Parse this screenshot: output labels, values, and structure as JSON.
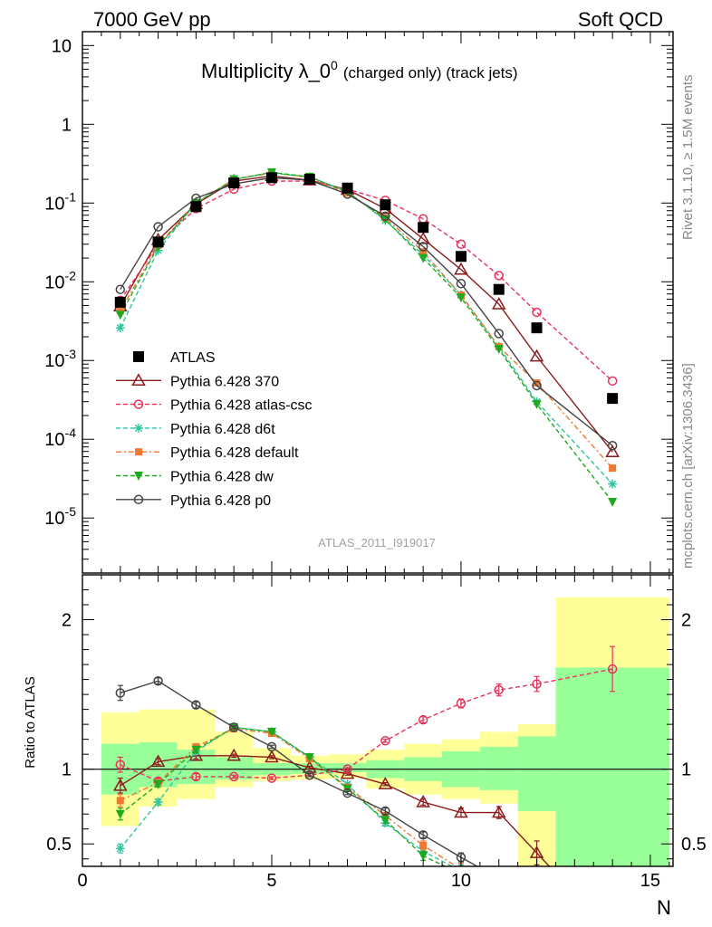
{
  "header": {
    "left": "7000 GeV pp",
    "right": "Soft QCD"
  },
  "title": {
    "main": "Multiplicity λ_0",
    "superscript": "0",
    "suffix": "(charged only) (track jets)"
  },
  "side_text": {
    "rivet": "Rivet 3.1.10, ≥ 1.5M events",
    "mcplots": "mcplots.cern.ch [arXiv:1306.3436]"
  },
  "watermark": "ATLAS_2011_I919017",
  "ratio_ylabel": "Ratio to ATLAS",
  "xlabel": "N",
  "colors": {
    "atlas": "#000000",
    "p370": "#8b1a1a",
    "atlascsc": "#e6335a",
    "d6t": "#2ec4a0",
    "default": "#f07830",
    "dw": "#1eaa1e",
    "p0": "#444444",
    "band_inner": "#99ff99",
    "band_outer": "#ffff99"
  },
  "chart_data": [
    {
      "type": "scatter",
      "panel": "main",
      "yscale": "log",
      "ylim": [
        2e-06,
        15
      ],
      "xlim": [
        0,
        15.6
      ],
      "y_ticks": [
        "10^-5",
        "10^-4",
        "10^-3",
        "10^-2",
        "10^-1",
        "1",
        "10"
      ],
      "x": [
        1,
        2,
        3,
        4,
        5,
        6,
        7,
        8,
        9,
        10,
        11,
        12,
        14
      ],
      "series": [
        {
          "name": "ATLAS",
          "style": "atlas",
          "values": [
            0.0055,
            0.032,
            0.09,
            0.18,
            0.21,
            0.2,
            0.155,
            0.095,
            0.049,
            0.021,
            0.008,
            0.0026,
            0.00033
          ]
        },
        {
          "name": "Pythia 6.428 370",
          "style": "p370",
          "values": [
            0.0049,
            0.034,
            0.097,
            0.19,
            0.221,
            0.195,
            0.148,
            0.085,
            0.035,
            0.0143,
            0.0052,
            0.00113,
            6.9e-05
          ]
        },
        {
          "name": "Pythia 6.428 atlas-csc",
          "style": "atlascsc",
          "values": [
            0.0058,
            0.03,
            0.085,
            0.15,
            0.19,
            0.19,
            0.15,
            0.108,
            0.063,
            0.03,
            0.012,
            0.0041,
            0.00055
          ]
        },
        {
          "name": "Pythia 6.428 d6t",
          "style": "d6t",
          "values": [
            0.0026,
            0.025,
            0.1,
            0.2,
            0.24,
            0.215,
            0.14,
            0.06,
            0.022,
            0.0068,
            0.0015,
            0.0003,
            2.7e-05
          ]
        },
        {
          "name": "Pythia 6.428 default",
          "style": "default",
          "values": [
            0.0043,
            0.029,
            0.1,
            0.2,
            0.245,
            0.21,
            0.135,
            0.065,
            0.024,
            0.0068,
            0.0015,
            0.00052,
            4.3e-05
          ]
        },
        {
          "name": "Pythia 6.428 dw",
          "style": "dw",
          "values": [
            0.0038,
            0.028,
            0.1,
            0.2,
            0.245,
            0.215,
            0.138,
            0.062,
            0.02,
            0.0063,
            0.0014,
            0.00028,
            1.6e-05
          ]
        },
        {
          "name": "Pythia 6.428 p0",
          "style": "p0",
          "values": [
            0.008,
            0.05,
            0.115,
            0.175,
            0.21,
            0.195,
            0.13,
            0.068,
            0.028,
            0.0095,
            0.0022,
            0.00048,
            8.3e-05
          ]
        }
      ],
      "legend": [
        {
          "label": "ATLAS",
          "style": "atlas"
        },
        {
          "label": "Pythia 6.428 370",
          "style": "p370"
        },
        {
          "label": "Pythia 6.428 atlas-csc",
          "style": "atlascsc"
        },
        {
          "label": "Pythia 6.428 d6t",
          "style": "d6t"
        },
        {
          "label": "Pythia 6.428 default",
          "style": "default"
        },
        {
          "label": "Pythia 6.428 dw",
          "style": "dw"
        },
        {
          "label": "Pythia 6.428 p0",
          "style": "p0"
        }
      ]
    },
    {
      "type": "line",
      "panel": "ratio",
      "ylim": [
        0.35,
        2.3
      ],
      "xlim": [
        0,
        15.6
      ],
      "y_ticks": [
        0.5,
        1,
        2
      ],
      "x_ticks": [
        0,
        5,
        10,
        15
      ],
      "x": [
        1,
        2,
        3,
        4,
        5,
        6,
        7,
        8,
        9,
        10,
        11,
        12,
        14
      ],
      "bands": [
        {
          "lo": 0.5,
          "hi": 1.5,
          "outer": [
            0.62,
            1.38
          ],
          "inner": [
            0.83,
            1.17
          ]
        },
        {
          "lo": 1.5,
          "hi": 2.5,
          "outer": [
            0.75,
            1.4
          ],
          "inner": [
            0.88,
            1.18
          ]
        },
        {
          "lo": 2.5,
          "hi": 3.5,
          "outer": [
            0.8,
            1.4
          ],
          "inner": [
            0.9,
            1.13
          ]
        },
        {
          "lo": 3.5,
          "hi": 4.5,
          "outer": [
            0.88,
            1.25
          ],
          "inner": [
            0.93,
            1.08
          ]
        },
        {
          "lo": 4.5,
          "hi": 5.5,
          "outer": [
            0.92,
            1.14
          ],
          "inner": [
            0.96,
            1.04
          ]
        },
        {
          "lo": 5.5,
          "hi": 6.5,
          "outer": [
            0.93,
            1.09
          ],
          "inner": [
            0.97,
            1.04
          ]
        },
        {
          "lo": 6.5,
          "hi": 7.5,
          "outer": [
            0.94,
            1.1
          ],
          "inner": [
            0.98,
            1.04
          ]
        },
        {
          "lo": 7.5,
          "hi": 8.5,
          "outer": [
            0.87,
            1.13
          ],
          "inner": [
            0.94,
            1.06
          ]
        },
        {
          "lo": 8.5,
          "hi": 9.5,
          "outer": [
            0.83,
            1.17
          ],
          "inner": [
            0.92,
            1.08
          ]
        },
        {
          "lo": 9.5,
          "hi": 10.5,
          "outer": [
            0.8,
            1.2
          ],
          "inner": [
            0.88,
            1.12
          ]
        },
        {
          "lo": 10.5,
          "hi": 11.5,
          "outer": [
            0.77,
            1.25
          ],
          "inner": [
            0.86,
            1.15
          ]
        },
        {
          "lo": 11.5,
          "hi": 12.5,
          "outer": [
            0.3,
            1.3
          ],
          "inner": [
            0.72,
            1.22
          ]
        },
        {
          "lo": 12.5,
          "hi": 15.5,
          "outer": [
            0.3,
            2.15
          ],
          "inner": [
            0.3,
            1.68
          ]
        }
      ],
      "series": [
        {
          "name": "Pythia 6.428 370",
          "style": "p370",
          "values": [
            0.89,
            1.05,
            1.09,
            1.09,
            1.08,
            1.01,
            0.97,
            0.9,
            0.78,
            0.71,
            0.71,
            0.44,
            null
          ],
          "err": [
            0.05,
            0.02,
            0.02,
            0.01,
            0.01,
            0.01,
            0.01,
            0.01,
            0.02,
            0.03,
            0.04,
            0.08,
            null
          ]
        },
        {
          "name": "Pythia 6.428 atlas-csc",
          "style": "atlascsc",
          "values": [
            1.03,
            0.92,
            0.95,
            0.95,
            0.94,
            0.96,
            1.0,
            1.19,
            1.33,
            1.44,
            1.53,
            1.57,
            1.67
          ],
          "err": [
            0.05,
            0.02,
            0.02,
            0.01,
            0.01,
            0.01,
            0.01,
            0.01,
            0.02,
            0.03,
            0.04,
            0.05,
            0.15
          ]
        },
        {
          "name": "Pythia 6.428 d6t",
          "style": "d6t",
          "values": [
            0.47,
            0.78,
            1.12,
            1.28,
            1.25,
            1.08,
            0.9,
            0.64,
            0.45,
            0.32,
            null,
            null,
            null
          ],
          "err": [
            0.03,
            0.02,
            0.02,
            0.01,
            0.01,
            0.01,
            0.01,
            0.02,
            0.03,
            0.04,
            null,
            null,
            null
          ]
        },
        {
          "name": "Pythia 6.428 default",
          "style": "default",
          "values": [
            0.79,
            0.91,
            1.15,
            1.27,
            1.24,
            1.07,
            0.88,
            0.69,
            0.49,
            0.33,
            null,
            null,
            null
          ],
          "err": [
            0.04,
            0.02,
            0.02,
            0.01,
            0.01,
            0.01,
            0.01,
            0.02,
            0.03,
            0.04,
            null,
            null,
            null
          ]
        },
        {
          "name": "Pythia 6.428 dw",
          "style": "dw",
          "values": [
            0.7,
            0.9,
            1.13,
            1.28,
            1.25,
            1.08,
            0.87,
            0.66,
            0.42,
            0.3,
            null,
            null,
            null
          ],
          "err": [
            0.04,
            0.02,
            0.02,
            0.01,
            0.01,
            0.01,
            0.01,
            0.02,
            0.03,
            0.04,
            null,
            null,
            null
          ]
        },
        {
          "name": "Pythia 6.428 p0",
          "style": "p0",
          "values": [
            1.51,
            1.59,
            1.43,
            1.28,
            1.15,
            0.96,
            0.84,
            0.72,
            0.56,
            0.41,
            0.27,
            null,
            null
          ],
          "err": [
            0.05,
            0.02,
            0.02,
            0.01,
            0.01,
            0.01,
            0.01,
            0.02,
            0.02,
            0.03,
            0.04,
            null,
            null
          ]
        }
      ]
    }
  ]
}
